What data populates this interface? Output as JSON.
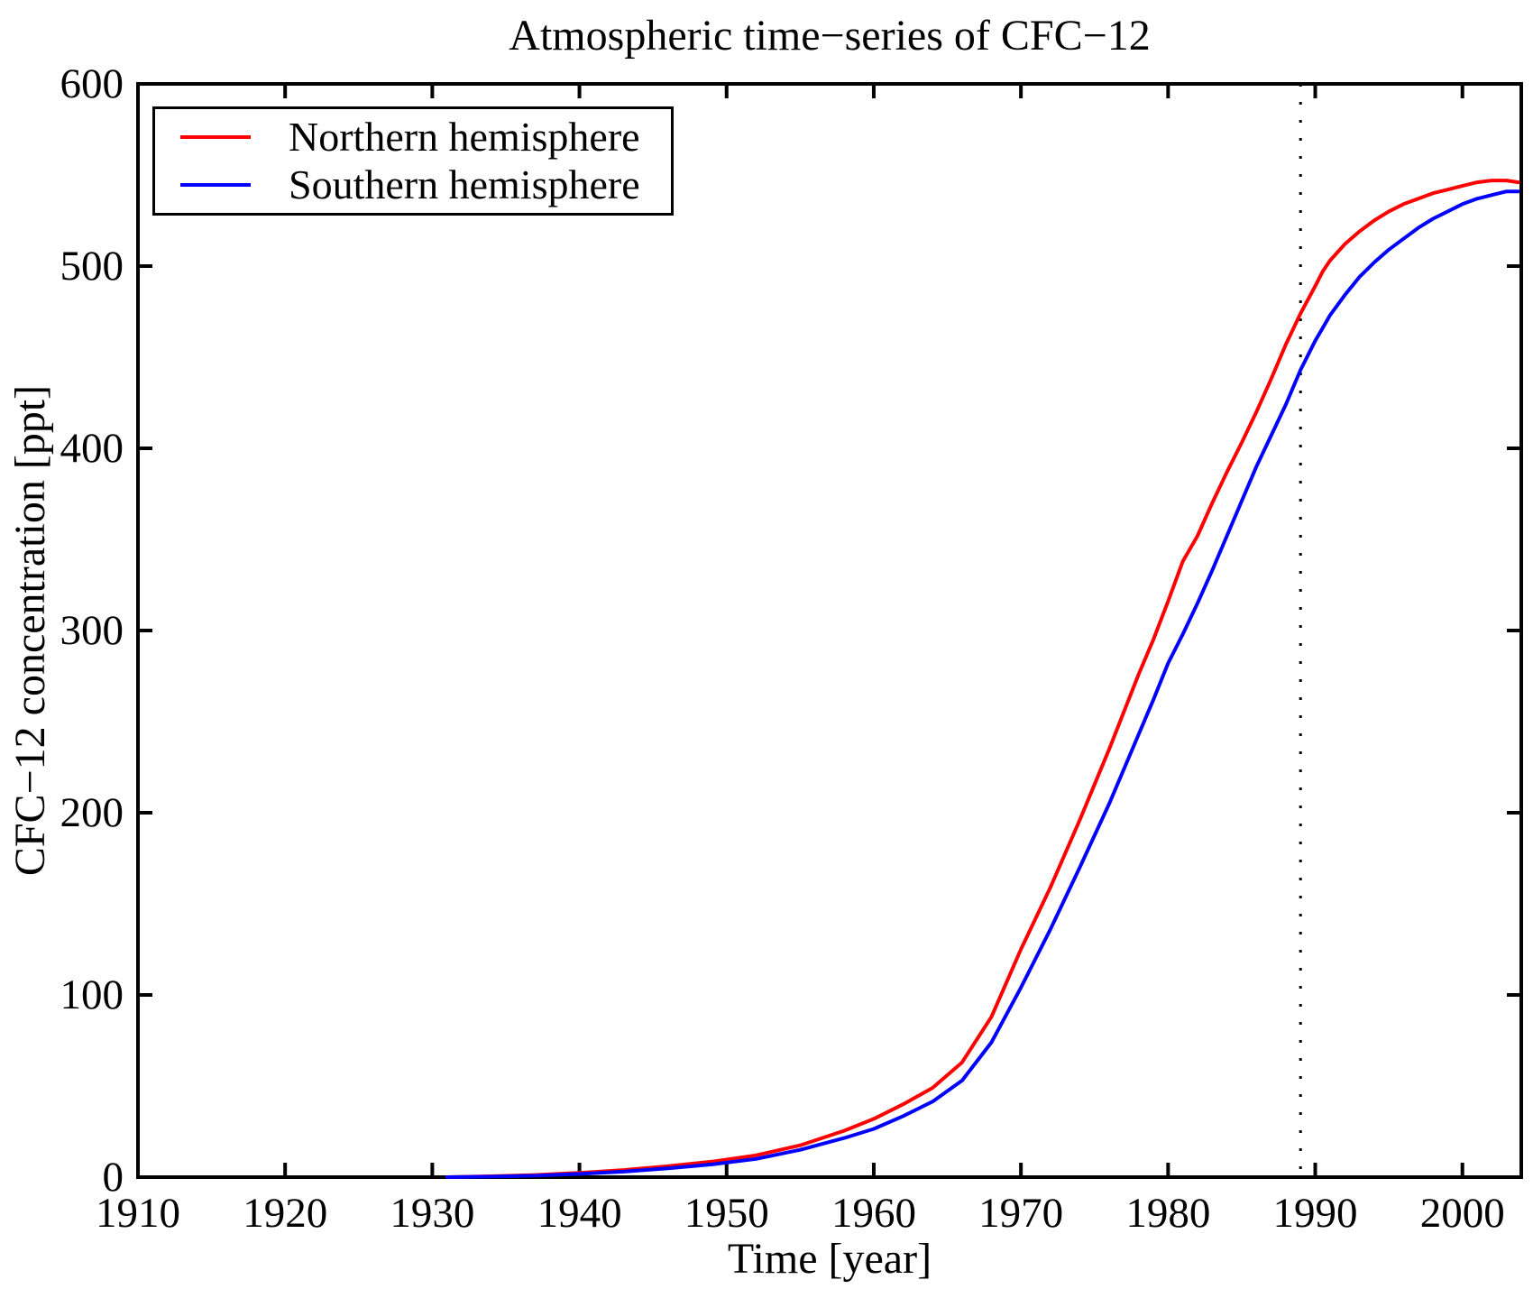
{
  "title": "Atmospheric time−series of CFC−12",
  "colors": {
    "axis": "#000000",
    "background": "#ffffff"
  },
  "chart_data": {
    "type": "line",
    "title": "Atmospheric time−series of CFC−12",
    "xlabel": "Time [year]",
    "ylabel": "CFC−12 concentration [ppt]",
    "xlim": [
      1910,
      2004
    ],
    "ylim": [
      0,
      600
    ],
    "x_ticks": [
      1910,
      1920,
      1930,
      1940,
      1950,
      1960,
      1970,
      1980,
      1990,
      2000
    ],
    "y_ticks": [
      0,
      100,
      200,
      300,
      400,
      500,
      600
    ],
    "grid": false,
    "legend_position": "top-left",
    "vline": {
      "x": 1989,
      "style": "dotted",
      "color": "#000000"
    },
    "x": [
      1931,
      1934,
      1937,
      1940,
      1943,
      1946,
      1949,
      1952,
      1955,
      1958,
      1960,
      1962,
      1964,
      1966,
      1968,
      1970,
      1972,
      1974,
      1976,
      1978,
      1979,
      1980,
      1981,
      1982,
      1983,
      1984,
      1985,
      1986,
      1987,
      1988,
      1989,
      1990,
      1990.5,
      1991,
      1992,
      1993,
      1994,
      1995,
      1996,
      1997,
      1998,
      1999,
      2000,
      2001,
      2002,
      2003,
      2003.8
    ],
    "series": [
      {
        "name": "Northern hemisphere",
        "color": "#ff0000",
        "values": [
          0,
          0.5,
          1.2,
          2.4,
          3.9,
          6,
          8.5,
          12,
          17.5,
          25.5,
          32,
          40,
          49,
          63,
          88,
          125,
          159,
          196,
          235,
          276,
          295,
          316,
          338,
          352,
          370,
          387,
          403,
          420,
          438,
          457,
          474,
          489,
          497,
          503,
          512,
          519,
          525,
          530,
          534,
          537,
          540,
          542,
          544,
          546,
          547,
          547,
          546
        ]
      },
      {
        "name": "Southern hemisphere",
        "color": "#0000ff",
        "values": [
          0,
          0.3,
          0.8,
          1.8,
          3,
          4.8,
          7,
          10,
          15,
          21.5,
          26.5,
          33.5,
          41.5,
          53,
          74,
          104,
          136,
          170,
          205,
          243,
          262,
          282,
          298,
          315,
          333,
          352,
          371,
          390,
          407,
          424,
          443,
          459,
          466,
          473,
          484,
          494,
          502,
          509,
          515,
          521,
          526,
          530,
          534,
          537,
          539,
          541,
          541
        ]
      }
    ]
  }
}
